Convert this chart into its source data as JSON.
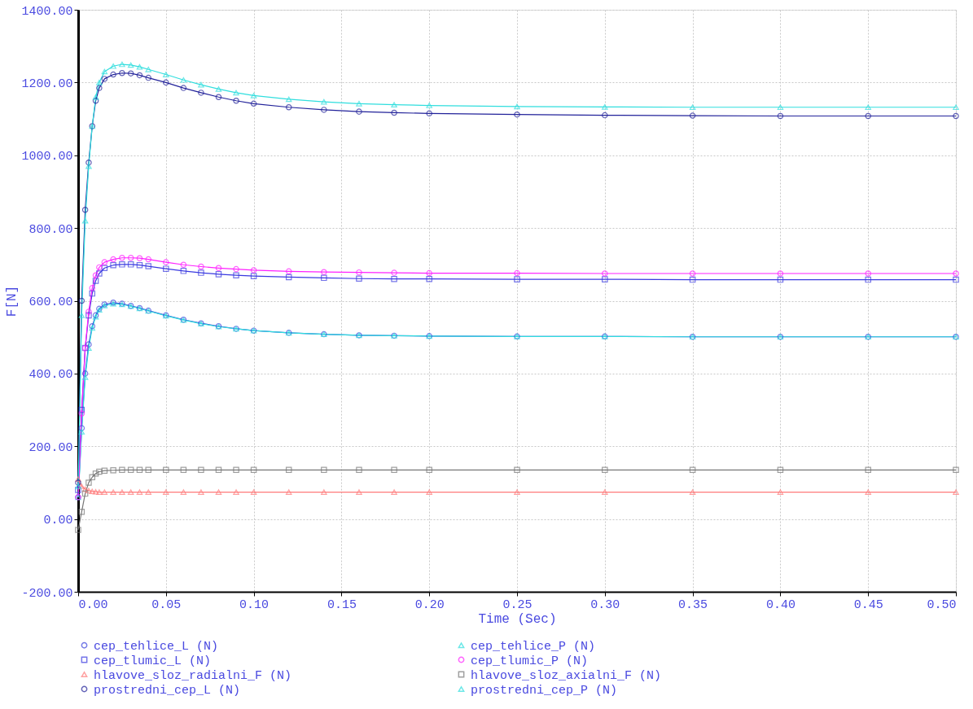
{
  "chart_data": {
    "type": "line",
    "xlabel": "Time (Sec)",
    "ylabel": "F[N]",
    "grid": true,
    "legend": "bottom",
    "xlim": [
      0,
      0.5
    ],
    "ylim": [
      -200,
      1400
    ],
    "xticks": [
      {
        "value": 0,
        "label": "0.00"
      },
      {
        "value": 0.05,
        "label": "0.05"
      },
      {
        "value": 0.1,
        "label": "0.10"
      },
      {
        "value": 0.15,
        "label": "0.15"
      },
      {
        "value": 0.2,
        "label": "0.20"
      },
      {
        "value": 0.25,
        "label": "0.25"
      },
      {
        "value": 0.3,
        "label": "0.30"
      },
      {
        "value": 0.35,
        "label": "0.35"
      },
      {
        "value": 0.4,
        "label": "0.40"
      },
      {
        "value": 0.45,
        "label": "0.45"
      },
      {
        "value": 0.5,
        "label": "0.50"
      }
    ],
    "yticks": [
      {
        "value": -200,
        "label": "-200.00"
      },
      {
        "value": 0,
        "label": "0.00"
      },
      {
        "value": 200,
        "label": "200.00"
      },
      {
        "value": 400,
        "label": "400.00"
      },
      {
        "value": 600,
        "label": "600.00"
      },
      {
        "value": 800,
        "label": "800.00"
      },
      {
        "value": 1000,
        "label": "1000.00"
      },
      {
        "value": 1200,
        "label": "1200.00"
      },
      {
        "value": 1400,
        "label": "1400.00"
      }
    ],
    "x": [
      0,
      0.002,
      0.004,
      0.006,
      0.008,
      0.01,
      0.012,
      0.015,
      0.02,
      0.025,
      0.03,
      0.035,
      0.04,
      0.05,
      0.06,
      0.07,
      0.08,
      0.09,
      0.1,
      0.12,
      0.14,
      0.16,
      0.18,
      0.2,
      0.25,
      0.3,
      0.35,
      0.4,
      0.45,
      0.5
    ],
    "series": [
      {
        "name": "cep_tehlice_L (N)",
        "color": "#3c44dc",
        "marker": "circle",
        "values": [
          60,
          250,
          400,
          480,
          530,
          560,
          578,
          590,
          595,
          592,
          586,
          580,
          573,
          560,
          548,
          538,
          530,
          523,
          518,
          512,
          508,
          505,
          504,
          503,
          502,
          502,
          501,
          501,
          501,
          501
        ]
      },
      {
        "name": "cep_tehlice_P (N)",
        "color": "#30dede",
        "marker": "triangle",
        "values": [
          60,
          240,
          390,
          470,
          525,
          556,
          575,
          587,
          592,
          590,
          585,
          579,
          572,
          559,
          547,
          537,
          529,
          523,
          518,
          512,
          508,
          505,
          504,
          503,
          502,
          502,
          501,
          501,
          501,
          501
        ]
      },
      {
        "name": "cep_tlumic_L (N)",
        "color": "#3a3ae0",
        "marker": "square",
        "values": [
          80,
          300,
          470,
          560,
          620,
          655,
          675,
          690,
          698,
          700,
          700,
          698,
          695,
          688,
          682,
          677,
          673,
          670,
          668,
          665,
          663,
          661,
          660,
          660,
          659,
          659,
          658,
          658,
          658,
          658
        ]
      },
      {
        "name": "cep_tlumic_P (N)",
        "color": "#ff20ff",
        "marker": "circle",
        "values": [
          60,
          290,
          470,
          570,
          635,
          670,
          692,
          706,
          714,
          718,
          718,
          717,
          714,
          706,
          699,
          694,
          690,
          687,
          684,
          681,
          679,
          678,
          677,
          676,
          676,
          675,
          675,
          675,
          675,
          675
        ]
      },
      {
        "name": "hlavove_sloz_radialni_F (N)",
        "color": "#ff7a7a",
        "marker": "triangle",
        "values": [
          110,
          90,
          82,
          78,
          76,
          75,
          74,
          74,
          74,
          74,
          74,
          74,
          74,
          74,
          74,
          74,
          74,
          74,
          74,
          74,
          74,
          74,
          74,
          74,
          74,
          74,
          74,
          74,
          74,
          74
        ]
      },
      {
        "name": "hlavove_sloz_axialni_F (N)",
        "color": "#777777",
        "marker": "square",
        "values": [
          -30,
          20,
          70,
          100,
          115,
          125,
          130,
          133,
          134,
          135,
          135,
          135,
          135,
          135,
          135,
          135,
          135,
          135,
          135,
          135,
          135,
          135,
          135,
          135,
          135,
          135,
          135,
          135,
          135,
          135
        ]
      },
      {
        "name": "prostredni_cep_L (N)",
        "color": "#22229a",
        "marker": "circle",
        "values": [
          100,
          600,
          850,
          980,
          1080,
          1150,
          1185,
          1210,
          1222,
          1226,
          1225,
          1220,
          1213,
          1200,
          1185,
          1172,
          1160,
          1150,
          1142,
          1132,
          1125,
          1120,
          1117,
          1115,
          1112,
          1110,
          1109,
          1108,
          1108,
          1108
        ]
      },
      {
        "name": "prostredni_cep_P (N)",
        "color": "#30dede",
        "marker": "triangle",
        "values": [
          90,
          560,
          820,
          970,
          1080,
          1160,
          1200,
          1230,
          1245,
          1250,
          1248,
          1243,
          1236,
          1222,
          1207,
          1194,
          1182,
          1172,
          1164,
          1154,
          1147,
          1142,
          1139,
          1137,
          1134,
          1133,
          1132,
          1132,
          1132,
          1132
        ]
      }
    ]
  }
}
